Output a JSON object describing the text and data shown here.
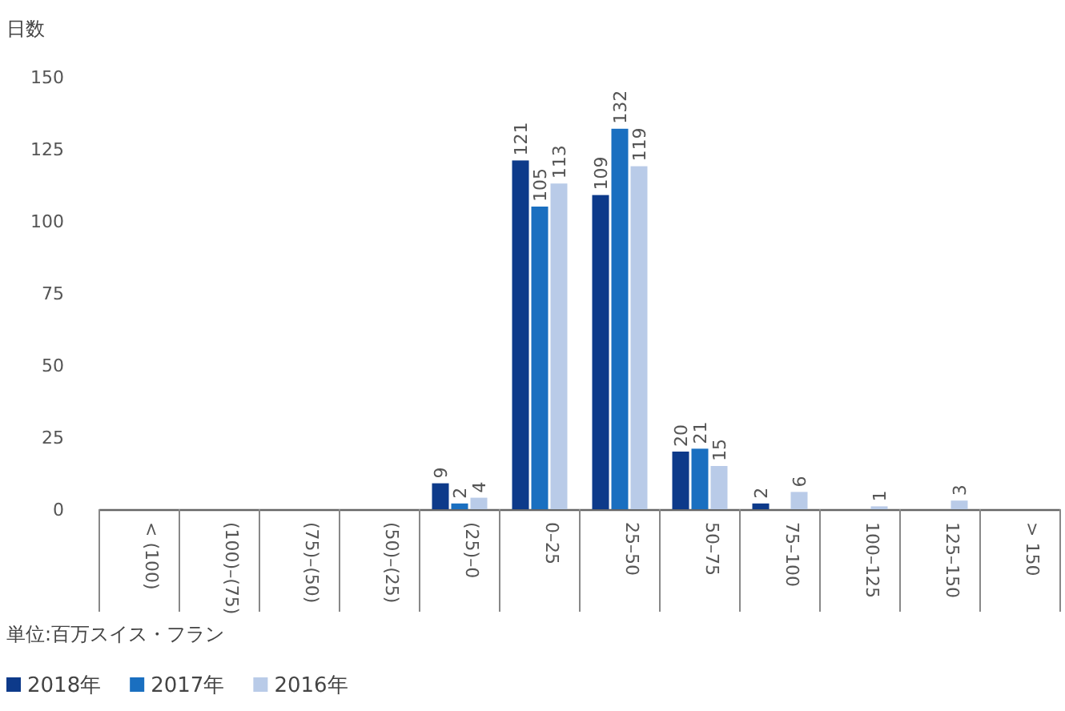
{
  "chart_data": {
    "type": "bar",
    "ylabel": "日数",
    "categories": [
      "< (100)",
      "(100)–(75)",
      "(75)–(50)",
      "(50)–(25)",
      "(25)–0",
      "0–25",
      "25–50",
      "50–75",
      "75–100",
      "100–125",
      "125–150",
      "> 150"
    ],
    "series": [
      {
        "name": "2018年",
        "color": "#0d3a8a",
        "values": [
          0,
          0,
          0,
          0,
          9,
          121,
          109,
          20,
          2,
          0,
          0,
          0
        ],
        "value_labels": [
          null,
          null,
          null,
          null,
          "9",
          "121",
          "109",
          "20",
          "2",
          null,
          null,
          null
        ]
      },
      {
        "name": "2017年",
        "color": "#1a6fc0",
        "values": [
          0,
          0,
          0,
          0,
          2,
          105,
          132,
          21,
          0,
          0,
          0,
          0
        ],
        "value_labels": [
          null,
          null,
          null,
          null,
          "2",
          "105",
          "132",
          "21",
          null,
          null,
          null,
          null
        ]
      },
      {
        "name": "2016年",
        "color": "#b9cbe8",
        "values": [
          0,
          0,
          0,
          0,
          4,
          113,
          119,
          15,
          6,
          1,
          3,
          0
        ],
        "value_labels": [
          null,
          null,
          null,
          null,
          "4",
          "113",
          "119",
          "15",
          "6",
          "1",
          "3",
          null
        ]
      }
    ],
    "ylim": [
      0,
      150
    ],
    "yticks": [
      0,
      25,
      50,
      75,
      100,
      125,
      150
    ],
    "annotations": [
      "単位:百万スイス・フラン"
    ],
    "legend": "bottom left",
    "grid": false
  }
}
